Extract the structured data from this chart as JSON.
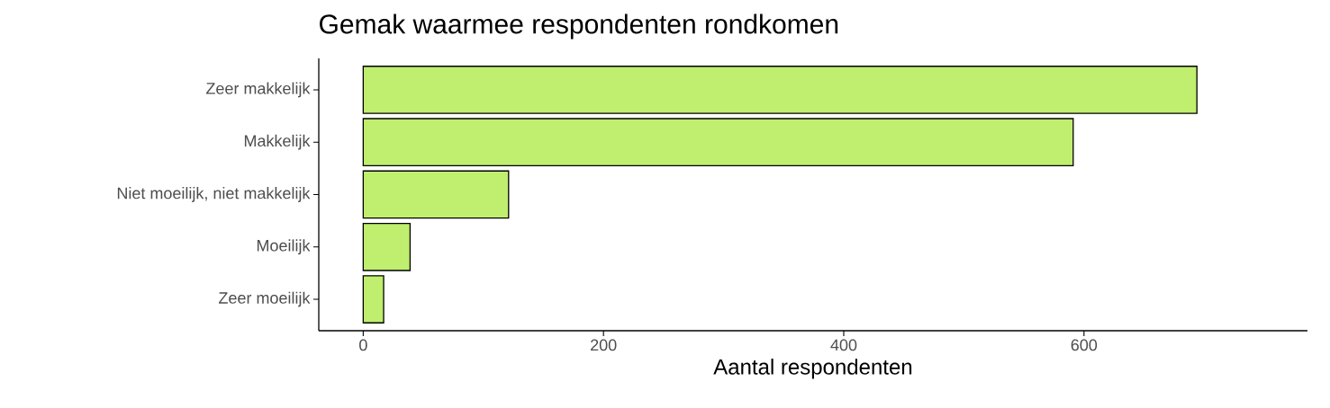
{
  "chart_data": {
    "type": "bar",
    "orientation": "horizontal",
    "title": "Gemak waarmee respondenten rondkomen",
    "xlabel": "Aantal respondenten",
    "categories": [
      "Zeer makkelijk",
      "Makkelijk",
      "Niet moeilijk, niet makkelijk",
      "Moeilijk",
      "Zeer moeilijk"
    ],
    "values": [
      694,
      591,
      121,
      39,
      17
    ],
    "color": "#c0ee6e",
    "xlim": [
      -37,
      786
    ],
    "xticks": [
      0,
      200,
      400,
      600
    ]
  }
}
